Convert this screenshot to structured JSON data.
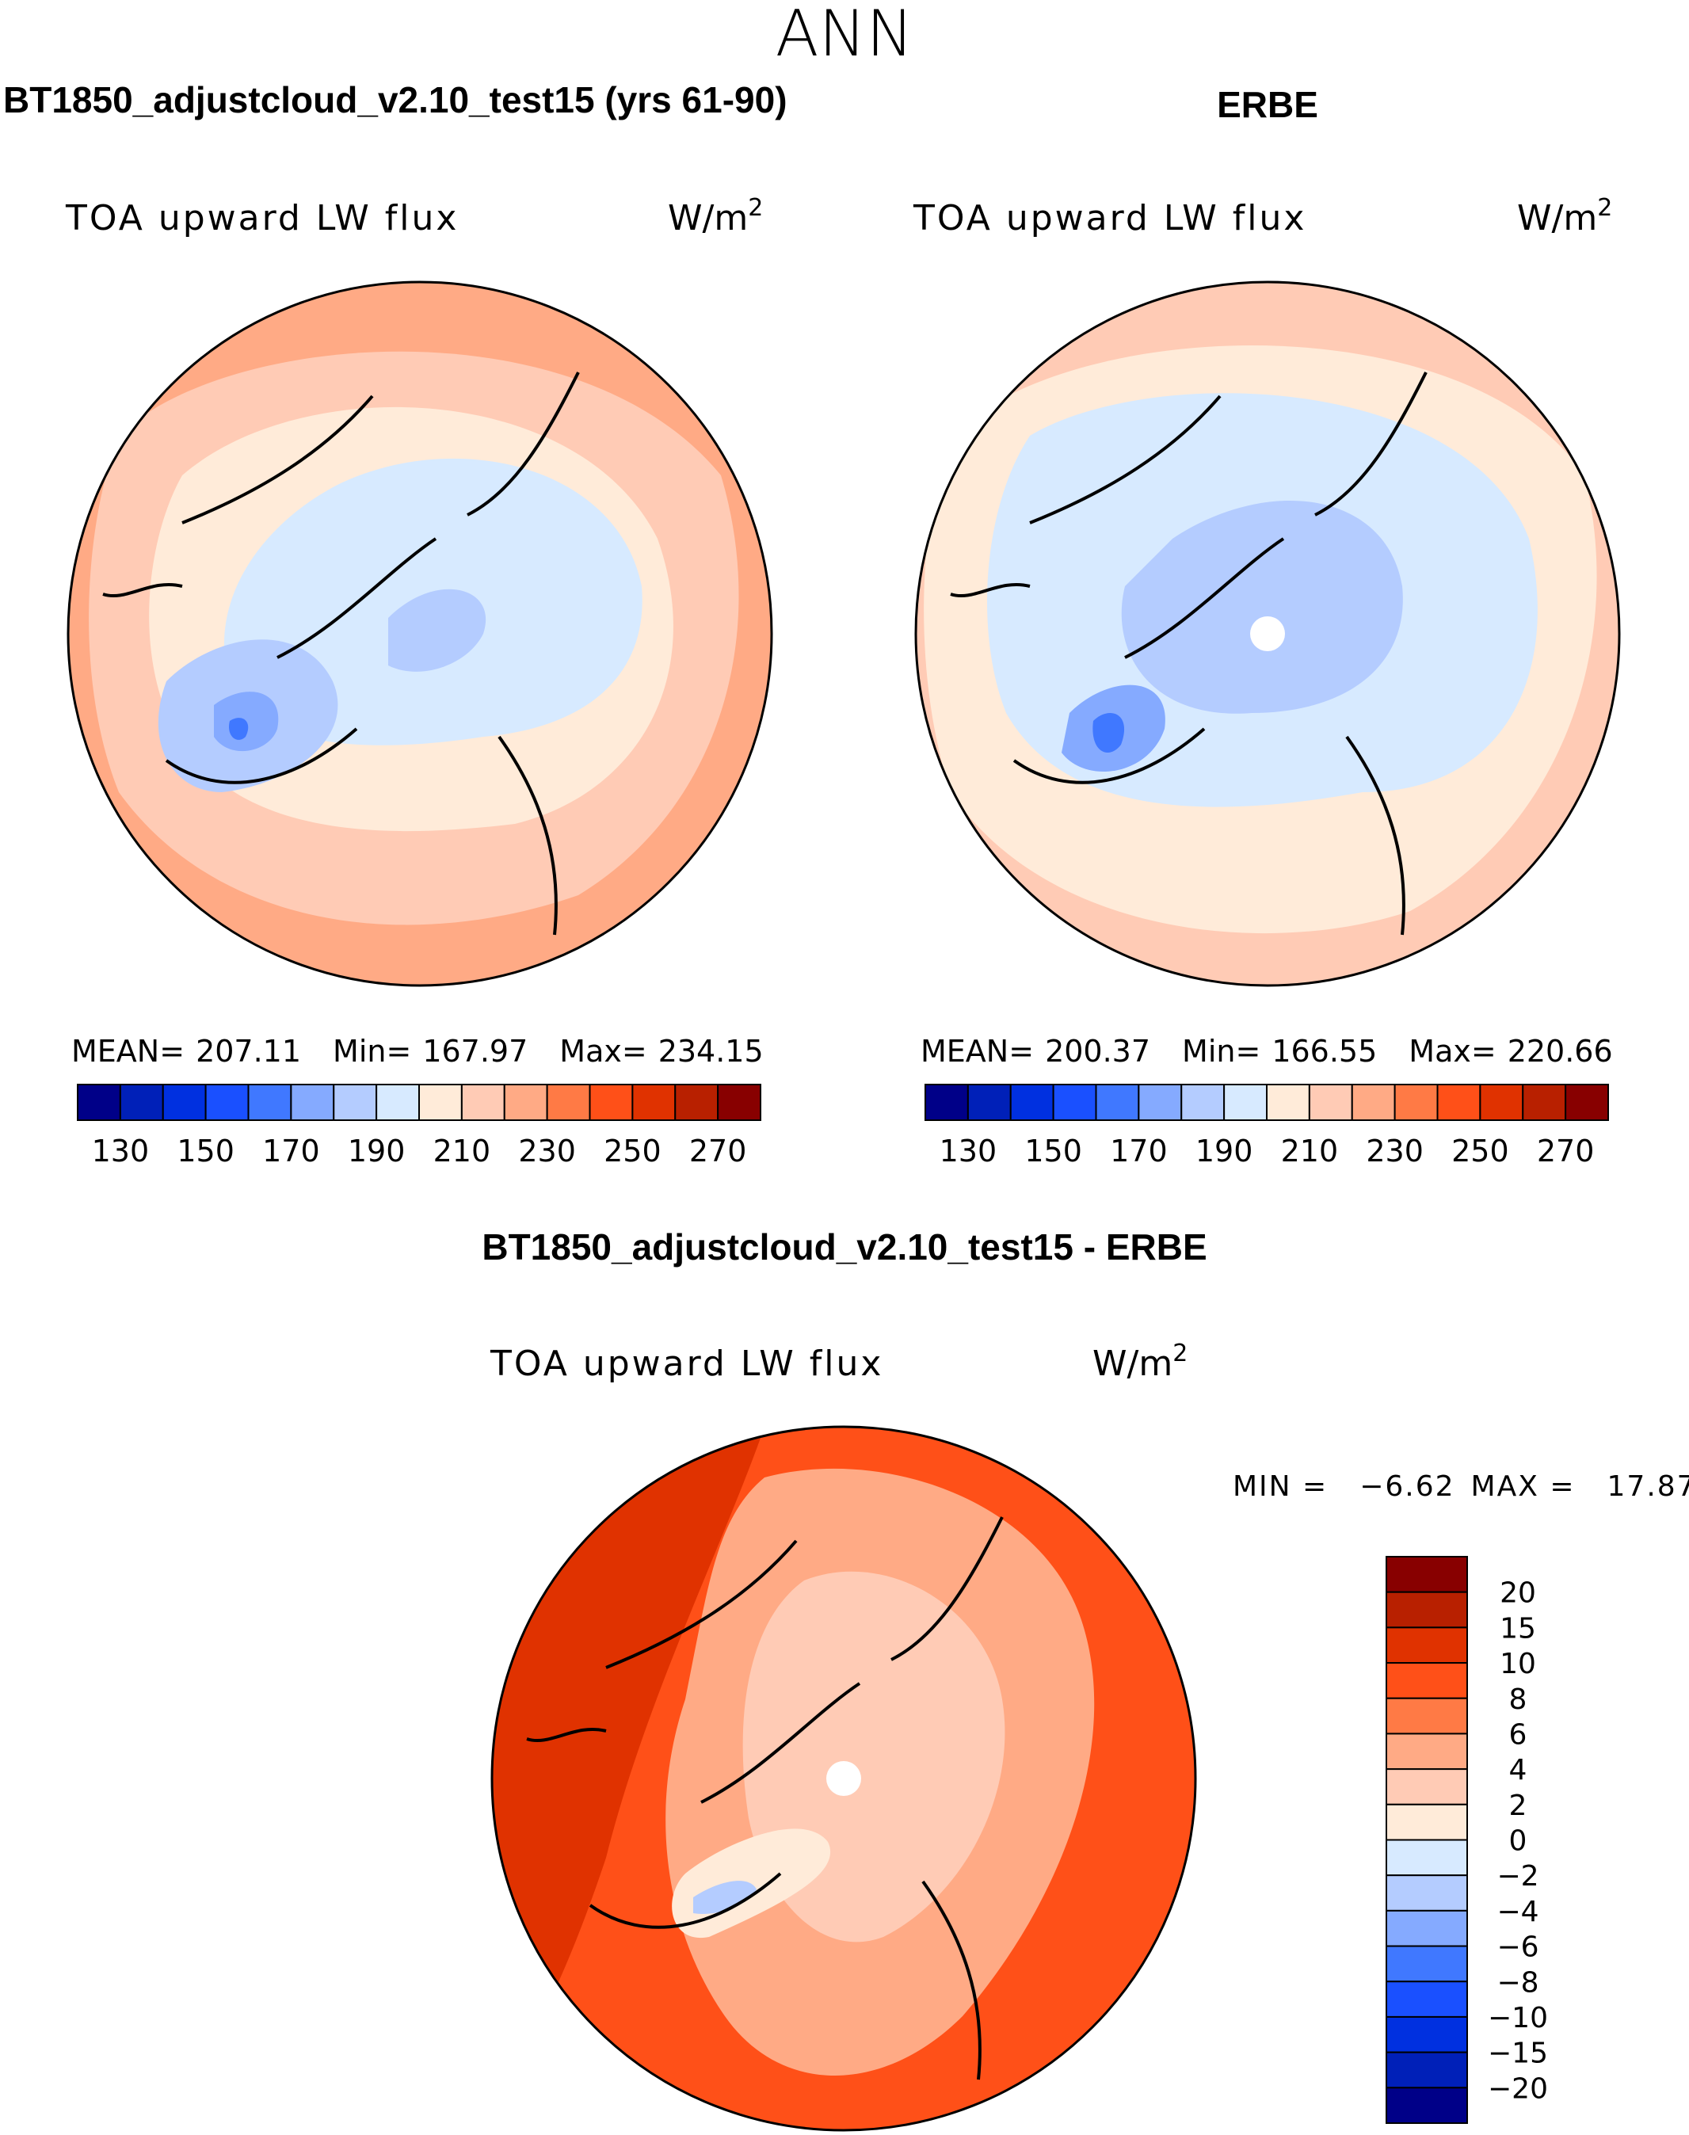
{
  "chart_data": [
    {
      "type": "heatmap",
      "projection": "north-polar-stereographic",
      "title": "BT1850_adjustcloud_v2.10_test15 (yrs 61-90)",
      "variable": "TOA upward LW flux",
      "units": "W/m",
      "units_exp": "2",
      "stats": {
        "mean_label": "MEAN=",
        "mean": "207.11",
        "min_label": "Min=",
        "min": "167.97",
        "max_label": "Max=",
        "max": "234.15"
      },
      "colorbar_ticks": [
        "130",
        "150",
        "170",
        "190",
        "210",
        "230",
        "250",
        "270"
      ]
    },
    {
      "type": "heatmap",
      "projection": "north-polar-stereographic",
      "title": "ERBE",
      "variable": "TOA upward LW flux",
      "units": "W/m",
      "units_exp": "2",
      "stats": {
        "mean_label": "MEAN=",
        "mean": "200.37",
        "min_label": "Min=",
        "min": "166.55",
        "max_label": "Max=",
        "max": "220.66"
      },
      "colorbar_ticks": [
        "130",
        "150",
        "170",
        "190",
        "210",
        "230",
        "250",
        "270"
      ]
    },
    {
      "type": "heatmap",
      "projection": "north-polar-stereographic",
      "title": "BT1850_adjustcloud_v2.10_test15 - ERBE",
      "variable": "TOA upward LW flux",
      "units": "W/m",
      "units_exp": "2",
      "stats": {
        "min_label": "MIN =",
        "min": "−6.62",
        "max_label": "MAX =",
        "max": "17.87"
      },
      "colorbar_ticks": [
        "20",
        "15",
        "10",
        "8",
        "6",
        "4",
        "2",
        "0",
        "−2",
        "−4",
        "−6",
        "−8",
        "−10",
        "−15",
        "−20"
      ]
    }
  ],
  "page_title": "ANN",
  "colors": [
    "#000088",
    "#0020b8",
    "#0030e0",
    "#1a50ff",
    "#4078ff",
    "#85aaff",
    "#b4ccff",
    "#d7eaff",
    "#ffebd9",
    "#ffcbb5",
    "#ffaa85",
    "#ff7a45",
    "#ff5018",
    "#e03200",
    "#b82000",
    "#880000"
  ]
}
